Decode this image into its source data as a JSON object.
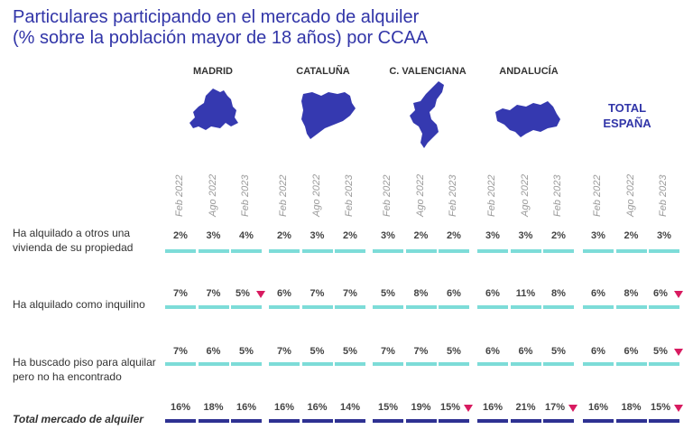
{
  "title": {
    "line1": "Particulares participando en el mercado de alquiler",
    "line2": "(% sobre la población mayor de 18 años) por CCAA"
  },
  "colors": {
    "title": "#3135a8",
    "map": "#3539b0",
    "bar_light": "#7ddcd8",
    "bar_dark": "#2e3192",
    "decrease_marker": "#d81b60"
  },
  "chart_data": {
    "type": "table",
    "regions": [
      "MADRID",
      "CATALUÑA",
      "C. VALENCIANA",
      "ANDALUCÍA"
    ],
    "total_region": {
      "line1": "TOTAL",
      "line2": "ESPAÑA"
    },
    "periods": [
      "Feb 2022",
      "Ago 2022",
      "Feb 2023"
    ],
    "rows": [
      {
        "label": "Ha alquilado a otros una vivienda de su propiedad",
        "label_line1": "Ha alquilado a otros una",
        "label_line2": "vivienda de su propiedad",
        "display": [
          "2%",
          "3%",
          "4%",
          "2%",
          "3%",
          "2%",
          "3%",
          "2%",
          "2%",
          "3%",
          "3%",
          "2%",
          "3%",
          "2%",
          "3%"
        ],
        "values": [
          2,
          3,
          4,
          2,
          3,
          2,
          3,
          2,
          2,
          3,
          3,
          2,
          3,
          2,
          3
        ],
        "decrease": [
          false,
          false,
          false,
          false,
          false,
          false,
          false,
          false,
          false,
          false,
          false,
          false,
          false,
          false,
          false
        ]
      },
      {
        "label": "Ha alquilado como inquilino",
        "label_line1": "Ha alquilado como inquilino",
        "label_line2": "",
        "display": [
          "7%",
          "7%",
          "5%",
          "6%",
          "7%",
          "7%",
          "5%",
          "8%",
          "6%",
          "6%",
          "11%",
          "8%",
          "6%",
          "8%",
          "6%"
        ],
        "values": [
          7,
          7,
          5,
          6,
          7,
          7,
          5,
          8,
          6,
          6,
          11,
          8,
          6,
          8,
          6
        ],
        "decrease": [
          false,
          false,
          true,
          false,
          false,
          false,
          false,
          false,
          false,
          false,
          false,
          false,
          false,
          false,
          true
        ]
      },
      {
        "label": "Ha buscado piso para alquilar pero no ha encontrado",
        "label_line1": "Ha buscado piso para alquilar",
        "label_line2": "pero no ha encontrado",
        "display": [
          "7%",
          "6%",
          "5%",
          "7%",
          "5%",
          "5%",
          "7%",
          "7%",
          "5%",
          "6%",
          "6%",
          "5%",
          "6%",
          "6%",
          "5%"
        ],
        "values": [
          7,
          6,
          5,
          7,
          5,
          5,
          7,
          7,
          5,
          6,
          6,
          5,
          6,
          6,
          5
        ],
        "decrease": [
          false,
          false,
          false,
          false,
          false,
          false,
          false,
          false,
          false,
          false,
          false,
          false,
          false,
          false,
          true
        ]
      },
      {
        "label": "Total mercado de alquiler",
        "label_line1": "Total mercado de alquiler",
        "label_line2": "",
        "display": [
          "16%",
          "18%",
          "16%",
          "16%",
          "16%",
          "14%",
          "15%",
          "19%",
          "15%",
          "16%",
          "21%",
          "17%",
          "16%",
          "18%",
          "15%"
        ],
        "values": [
          16,
          18,
          16,
          16,
          16,
          14,
          15,
          19,
          15,
          16,
          21,
          17,
          16,
          18,
          15
        ],
        "decrease": [
          false,
          false,
          false,
          false,
          false,
          false,
          false,
          false,
          true,
          false,
          false,
          true,
          false,
          false,
          true
        ]
      }
    ]
  }
}
